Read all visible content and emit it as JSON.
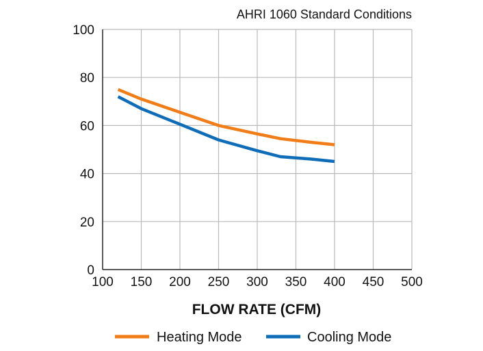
{
  "chart_data": {
    "type": "line",
    "title": "AHRI 1060 Standard Conditions",
    "xlabel": "FLOW RATE (CFM)",
    "ylabel": "",
    "xlim": [
      100,
      500
    ],
    "ylim": [
      0,
      100
    ],
    "xticks": [
      100,
      150,
      200,
      250,
      300,
      350,
      400,
      450,
      500
    ],
    "yticks": [
      0,
      20,
      40,
      60,
      80,
      100
    ],
    "grid": true,
    "legend_position": "bottom",
    "series": [
      {
        "name": "Heating Mode",
        "color": "#F07D18",
        "x": [
          120,
          150,
          200,
          250,
          300,
          330,
          370,
          400
        ],
        "y": [
          75,
          71,
          65.5,
          60,
          56.5,
          54.5,
          53,
          52
        ]
      },
      {
        "name": "Cooling Mode",
        "color": "#0F6DB8",
        "x": [
          120,
          150,
          200,
          250,
          300,
          330,
          370,
          400
        ],
        "y": [
          72,
          67,
          60.5,
          54,
          49.5,
          47,
          46,
          45
        ]
      }
    ]
  }
}
